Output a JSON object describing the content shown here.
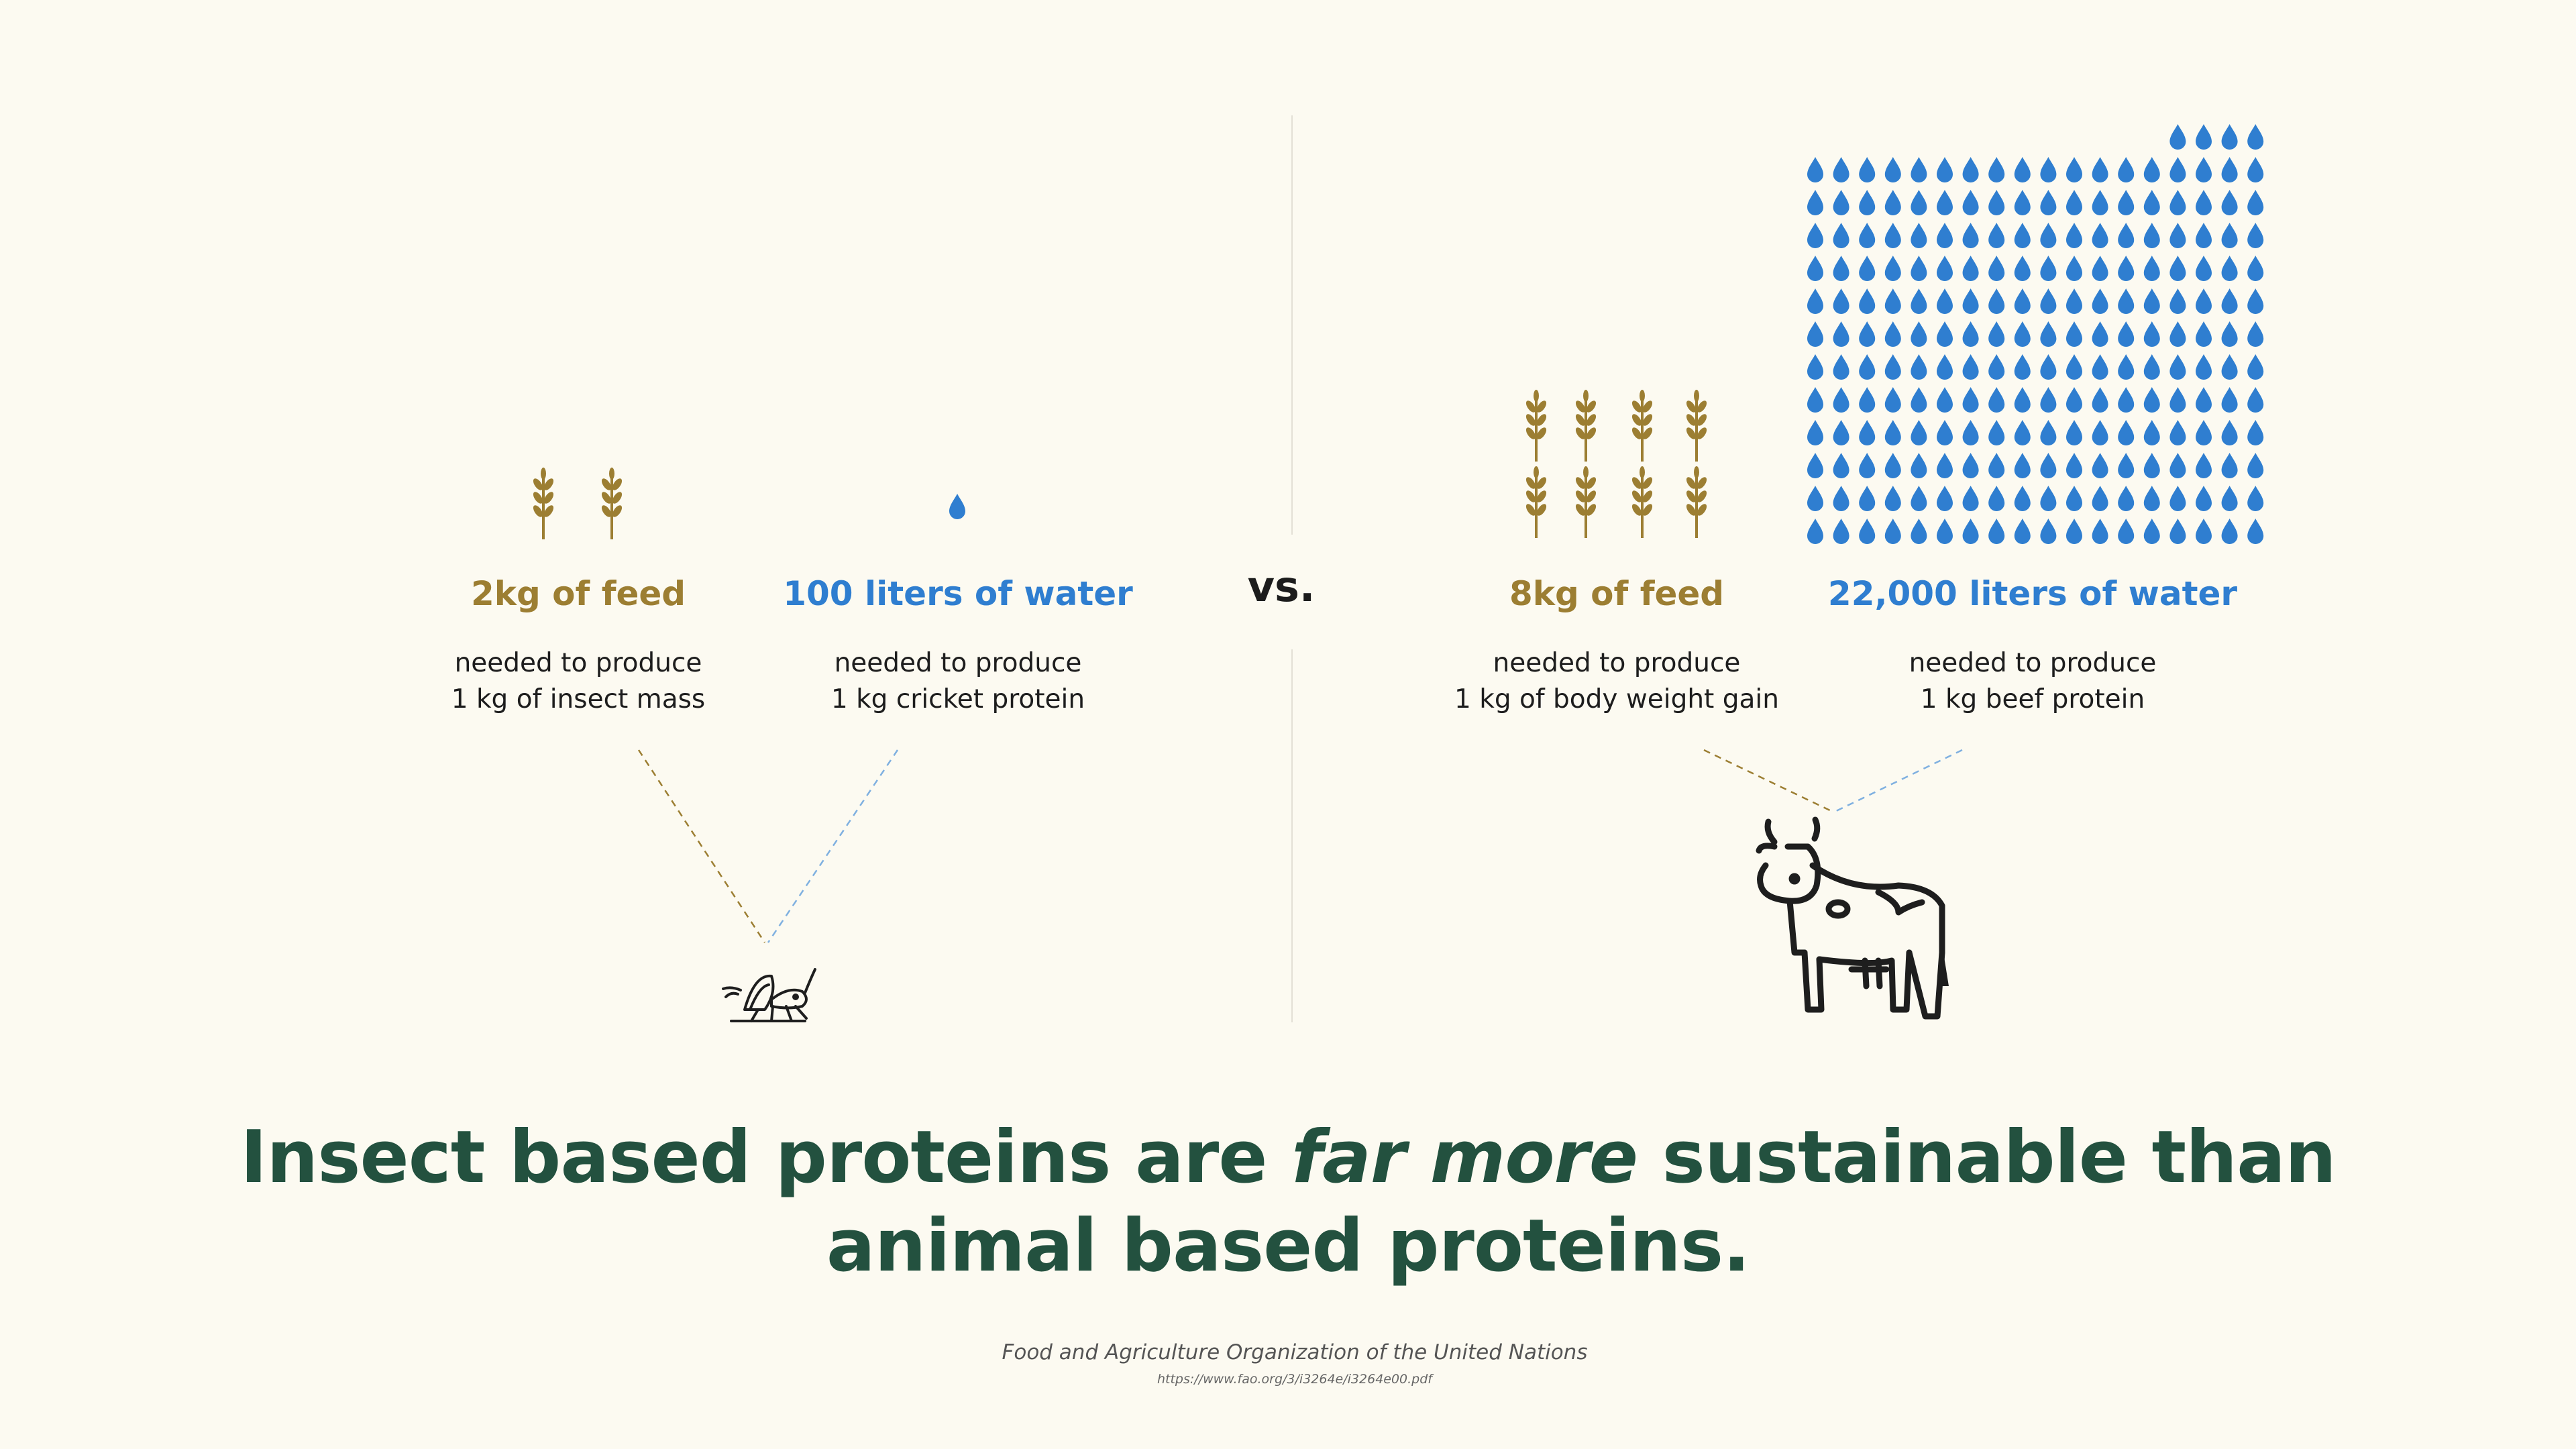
{
  "insect": {
    "feed": {
      "heading": "2kg of feed",
      "line1": "needed to produce",
      "line2": "1 kg of insect mass",
      "icon": "wheat-icon",
      "icon_count": 2
    },
    "water": {
      "heading": "100 liters of water",
      "line1": "needed to produce",
      "line2": "1 kg cricket protein",
      "icon": "water-drop-icon",
      "icon_count": 1
    },
    "animal_icon": "cricket-icon"
  },
  "vs_label": "vs.",
  "cow": {
    "feed": {
      "heading": "8kg of feed",
      "line1": "needed to produce",
      "line2": "1 kg of body weight gain",
      "icon": "wheat-icon",
      "icon_count": 8
    },
    "water": {
      "heading": "22,000 liters of water",
      "line1": "needed to produce",
      "line2": "1 kg beef protein",
      "icon": "water-drop-icon",
      "icon_count": 220
    },
    "animal_icon": "cow-icon"
  },
  "headline": {
    "part1": "Insect based proteins are ",
    "emphasis": "far more",
    "part2": " sustainable than",
    "line2": "animal based proteins."
  },
  "source": {
    "name": "Food and Agriculture Organization of the United Nations",
    "url": "https://www.fao.org/3/i3264e/i3264e00.pdf"
  },
  "colors": {
    "feed": "#9c7e32",
    "water": "#2f7ed0",
    "headline": "#23513f",
    "background": "#fcfaf1"
  }
}
